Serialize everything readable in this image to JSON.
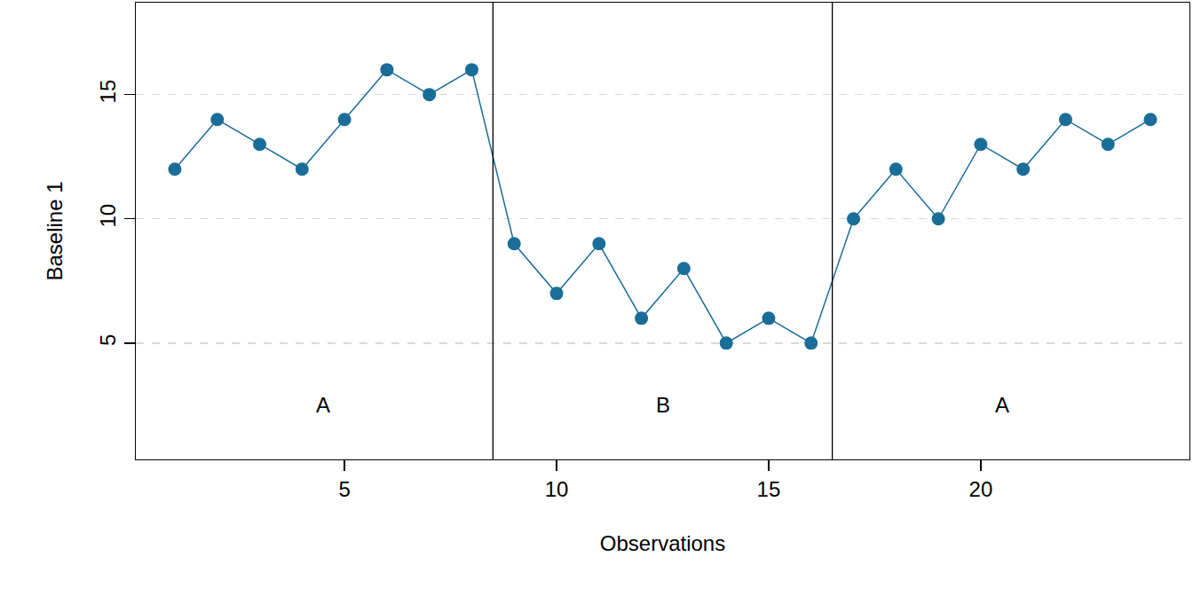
{
  "chart_data": {
    "type": "line",
    "x_label": "Observations",
    "y_label": "Baseline 1",
    "x": [
      1,
      2,
      3,
      4,
      5,
      6,
      7,
      8,
      9,
      10,
      11,
      12,
      13,
      14,
      15,
      16,
      17,
      18,
      19,
      20,
      21,
      22,
      23,
      24
    ],
    "values": [
      12,
      14,
      13,
      12,
      14,
      16,
      15,
      16,
      9,
      7,
      9,
      6,
      8,
      5,
      6,
      5,
      10,
      12,
      10,
      13,
      12,
      14,
      13,
      14
    ],
    "color": "#1a6d98",
    "marker": "circle",
    "line_style": "solid",
    "phases": [
      {
        "label": "A",
        "start": 1,
        "end": 8
      },
      {
        "label": "B",
        "start": 9,
        "end": 16
      },
      {
        "label": "A",
        "start": 17,
        "end": 24
      }
    ],
    "xlim": [
      0.08,
      24.92
    ],
    "ylim": [
      0.32,
      18.7
    ],
    "xticks": [
      5,
      10,
      15,
      20
    ],
    "yticks": [
      5,
      10,
      15
    ],
    "grid": true
  }
}
